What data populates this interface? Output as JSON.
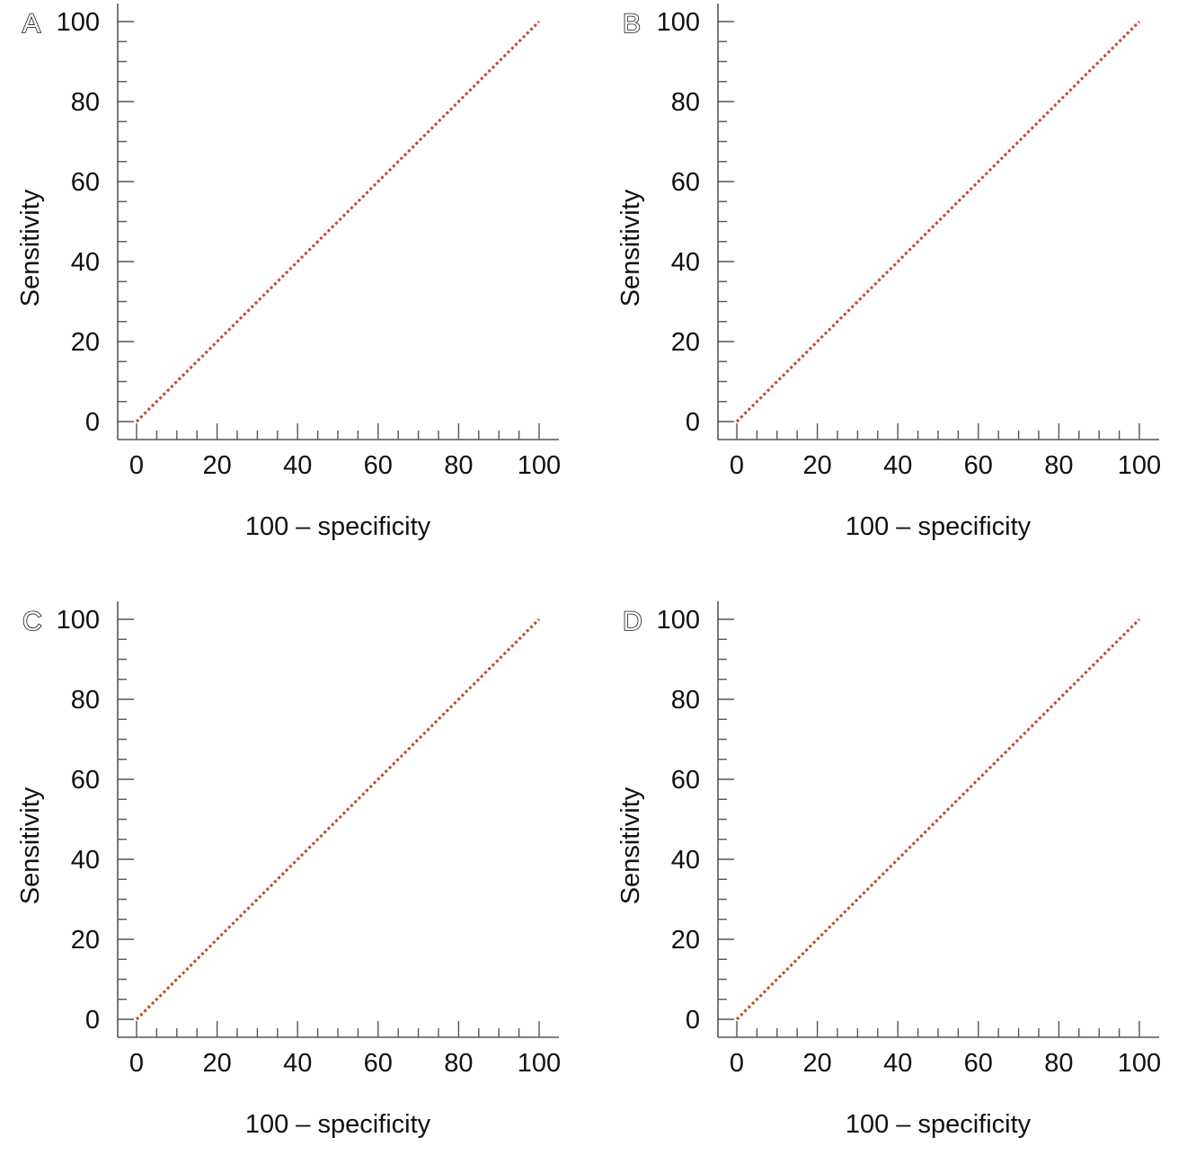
{
  "colors": {
    "reference_line": "#c8442a",
    "axis": "#555555",
    "text": "#111111"
  },
  "chart_data": [
    {
      "panel": "A",
      "type": "line",
      "xlabel": "100 – specificity",
      "ylabel": "Sensitivity",
      "xlim": [
        0,
        100
      ],
      "ylim": [
        0,
        100
      ],
      "xticks": [
        "0",
        "20",
        "40",
        "60",
        "80",
        "100"
      ],
      "yticks": [
        "0",
        "20",
        "40",
        "60",
        "80",
        "100"
      ],
      "grid": false,
      "series": [
        {
          "x": [
            0,
            100
          ],
          "y": [
            0,
            100
          ],
          "style": "dotted"
        }
      ]
    },
    {
      "panel": "B",
      "type": "line",
      "xlabel": "100 – specificity",
      "ylabel": "Sensitivity",
      "xlim": [
        0,
        100
      ],
      "ylim": [
        0,
        100
      ],
      "xticks": [
        "0",
        "20",
        "40",
        "60",
        "80",
        "100"
      ],
      "yticks": [
        "0",
        "20",
        "40",
        "60",
        "80",
        "100"
      ],
      "grid": false,
      "series": [
        {
          "x": [
            0,
            100
          ],
          "y": [
            0,
            100
          ],
          "style": "dotted"
        }
      ]
    },
    {
      "panel": "C",
      "type": "line",
      "xlabel": "100 – specificity",
      "ylabel": "Sensitivity",
      "xlim": [
        0,
        100
      ],
      "ylim": [
        0,
        100
      ],
      "xticks": [
        "0",
        "20",
        "40",
        "60",
        "80",
        "100"
      ],
      "yticks": [
        "0",
        "20",
        "40",
        "60",
        "80",
        "100"
      ],
      "grid": false,
      "series": [
        {
          "x": [
            0,
            100
          ],
          "y": [
            0,
            100
          ],
          "style": "dotted"
        }
      ]
    },
    {
      "panel": "D",
      "type": "line",
      "xlabel": "100 – specificity",
      "ylabel": "Sensitivity",
      "xlim": [
        0,
        100
      ],
      "ylim": [
        0,
        100
      ],
      "xticks": [
        "0",
        "20",
        "40",
        "60",
        "80",
        "100"
      ],
      "yticks": [
        "0",
        "20",
        "40",
        "60",
        "80",
        "100"
      ],
      "grid": false,
      "series": [
        {
          "x": [
            0,
            100
          ],
          "y": [
            0,
            100
          ],
          "style": "dotted"
        }
      ]
    }
  ]
}
